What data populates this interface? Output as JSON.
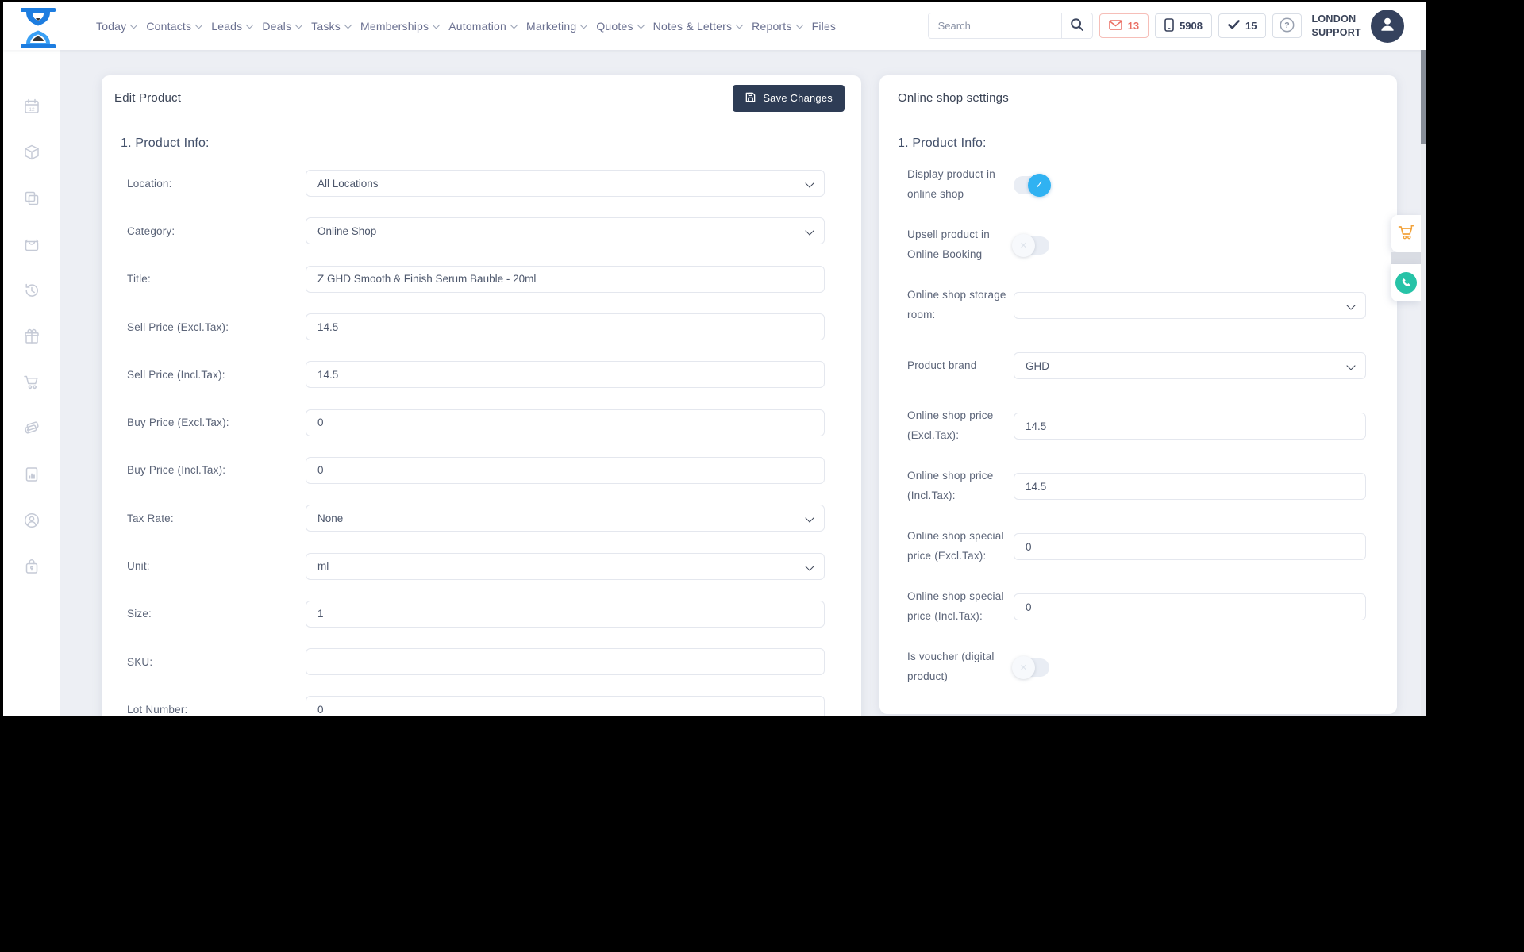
{
  "topbar": {
    "nav": [
      {
        "label": "Today",
        "chevron": true
      },
      {
        "label": "Contacts",
        "chevron": true
      },
      {
        "label": "Leads",
        "chevron": true
      },
      {
        "label": "Deals",
        "chevron": true
      },
      {
        "label": "Tasks",
        "chevron": true
      },
      {
        "label": "Memberships",
        "chevron": true
      },
      {
        "label": "Automation",
        "chevron": true
      },
      {
        "label": "Marketing",
        "chevron": true
      },
      {
        "label": "Quotes",
        "chevron": true
      },
      {
        "label": "Notes & Letters",
        "chevron": true
      },
      {
        "label": "Reports",
        "chevron": true
      },
      {
        "label": "Files",
        "chevron": false
      }
    ],
    "search_placeholder": "Search",
    "messages_count": "13",
    "phone_count": "5908",
    "tasks_count": "15",
    "account_line1": "LONDON",
    "account_line2": "SUPPORT"
  },
  "sidebar": {
    "icons": [
      "calendar",
      "package",
      "copy",
      "shopping-bag",
      "history",
      "gift",
      "cart",
      "tags",
      "report",
      "user-circle",
      "lock"
    ]
  },
  "left_card": {
    "title": "Edit Product",
    "save_label": "Save Changes",
    "section": "1. Product Info:",
    "fields": [
      {
        "label": "Location:",
        "type": "select",
        "value": "All Locations"
      },
      {
        "label": "Category:",
        "type": "select",
        "value": "Online Shop"
      },
      {
        "label": "Title:",
        "type": "text",
        "value": "Z GHD Smooth & Finish Serum Bauble - 20ml"
      },
      {
        "label": "Sell Price (Excl.Tax):",
        "type": "text",
        "value": "14.5"
      },
      {
        "label": "Sell Price (Incl.Tax):",
        "type": "text",
        "value": "14.5"
      },
      {
        "label": "Buy Price (Excl.Tax):",
        "type": "text",
        "value": "0"
      },
      {
        "label": "Buy Price (Incl.Tax):",
        "type": "text",
        "value": "0"
      },
      {
        "label": "Tax Rate:",
        "type": "select",
        "value": "None"
      },
      {
        "label": "Unit:",
        "type": "select",
        "value": "ml"
      },
      {
        "label": "Size:",
        "type": "text",
        "value": "1"
      },
      {
        "label": "SKU:",
        "type": "text",
        "value": ""
      },
      {
        "label": "Lot Number:",
        "type": "text",
        "value": "0"
      }
    ]
  },
  "right_card": {
    "title": "Online shop settings",
    "section": "1. Product Info:",
    "fields": [
      {
        "label": "Display product in online shop",
        "type": "toggle",
        "value": "on"
      },
      {
        "label": "Upsell product in Online Booking",
        "type": "toggle",
        "value": "off"
      },
      {
        "label": "Online shop storage room:",
        "type": "select",
        "value": ""
      },
      {
        "label": "Product brand",
        "type": "select",
        "value": "GHD"
      },
      {
        "label": "Online shop price (Excl.Tax):",
        "type": "text",
        "value": "14.5"
      },
      {
        "label": "Online shop price (Incl.Tax):",
        "type": "text",
        "value": "14.5"
      },
      {
        "label": "Online shop special price (Excl.Tax):",
        "type": "text",
        "value": "0"
      },
      {
        "label": "Online shop special price (Incl.Tax):",
        "type": "text",
        "value": "0"
      },
      {
        "label": "Is voucher (digital product)",
        "type": "toggle",
        "value": "off"
      }
    ]
  },
  "colors": {
    "accent_blue": "#30b2f2",
    "danger_red": "#ea6e63",
    "button_dark": "#2e3c55",
    "cart_orange": "#f2a33c",
    "chat_teal": "#27c3a7",
    "page_bg": "#edeff4"
  }
}
